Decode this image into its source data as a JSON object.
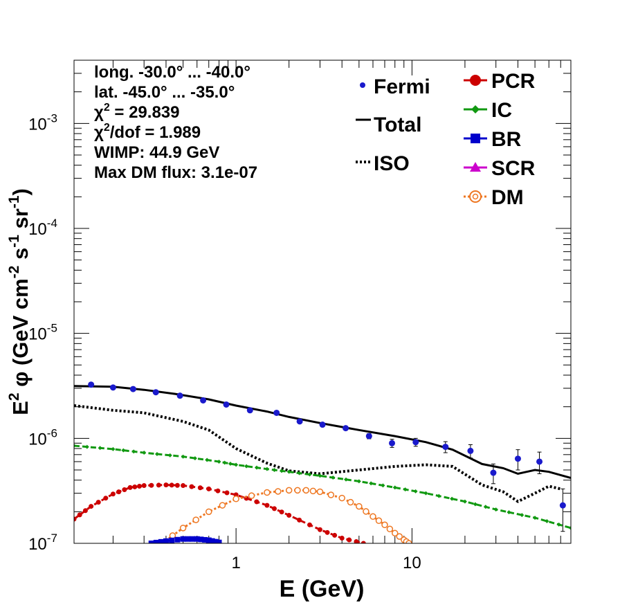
{
  "chart_data": {
    "type": "line",
    "xscale": "log",
    "yscale": "log",
    "xlim": [
      0.12,
      80
    ],
    "ylim": [
      1e-07,
      0.004
    ],
    "xlabel": "E (GeV)",
    "ylabel_parts": [
      "E",
      "2",
      "  φ (GeV cm",
      "-2",
      " s",
      "-1",
      " sr",
      "-1",
      ")"
    ],
    "x_tick_labels": [
      {
        "value": 1,
        "label": "1"
      },
      {
        "value": 10,
        "label": "10"
      }
    ],
    "y_tick_labels": [
      {
        "value": 1e-07,
        "base": "10",
        "exp": "-7"
      },
      {
        "value": 1e-06,
        "base": "10",
        "exp": "-6"
      },
      {
        "value": 1e-05,
        "base": "10",
        "exp": "-5"
      },
      {
        "value": 0.0001,
        "base": "10",
        "exp": "-4"
      },
      {
        "value": 0.001,
        "base": "10",
        "exp": "-3"
      }
    ],
    "info_lines": [
      {
        "parts": [
          {
            "t": "long. -30.0° ... -40.0°"
          }
        ]
      },
      {
        "parts": [
          {
            "t": "lat. -45.0° ... -35.0°"
          }
        ]
      },
      {
        "parts": [
          {
            "t": "χ"
          },
          {
            "t": "2",
            "sup": true
          },
          {
            "t": " = 29.839"
          }
        ]
      },
      {
        "parts": [
          {
            "t": "χ"
          },
          {
            "t": "2",
            "sup": true
          },
          {
            "t": "/dof = 1.989"
          }
        ]
      },
      {
        "parts": [
          {
            "t": "WIMP: 44.9 GeV"
          }
        ]
      },
      {
        "parts": [
          {
            "t": "Max DM flux: 3.1e-07"
          }
        ]
      }
    ],
    "legend_left": [
      {
        "label": "Fermi",
        "style": "points",
        "color": "#1a1acc"
      },
      {
        "label": "Total",
        "style": "solid",
        "color": "#000000"
      },
      {
        "label": "ISO",
        "style": "dotted",
        "color": "#000000"
      }
    ],
    "legend_right": [
      {
        "label": "PCR",
        "style": "circle",
        "color": "#cc0000"
      },
      {
        "label": "IC",
        "style": "diamond",
        "color": "#119911"
      },
      {
        "label": "BR",
        "style": "square",
        "color": "#0000cc"
      },
      {
        "label": "SCR",
        "style": "triangle",
        "color": "#cc00cc"
      },
      {
        "label": "DM",
        "style": "open-circle",
        "color": "#ee7722"
      }
    ],
    "fermi": {
      "name": "Fermi",
      "color": "#1a1acc",
      "x": [
        0.15,
        0.2,
        0.26,
        0.35,
        0.48,
        0.65,
        0.88,
        1.2,
        1.7,
        2.3,
        3.1,
        4.2,
        5.7,
        7.7,
        10.5,
        15.5,
        21.5,
        29.0,
        40.0,
        53.0,
        72.0
      ],
      "y": [
        3.25e-06,
        3.05e-06,
        2.95e-06,
        2.75e-06,
        2.55e-06,
        2.3e-06,
        2.1e-06,
        1.85e-06,
        1.75e-06,
        1.45e-06,
        1.35e-06,
        1.25e-06,
        1.05e-06,
        9e-07,
        9.2e-07,
        8.3e-07,
        7.6e-07,
        4.7e-07,
        6.4e-07,
        6e-07,
        2.3e-07
      ],
      "err": [
        5e-08,
        5e-08,
        5e-08,
        5e-08,
        5e-08,
        5e-08,
        5e-08,
        5e-08,
        5e-08,
        5e-08,
        5e-08,
        5e-08,
        6e-08,
        8e-08,
        8e-08,
        1e-07,
        1.1e-07,
        1e-07,
        1.4e-07,
        1.4e-07,
        1e-07
      ]
    },
    "series": [
      {
        "name": "Total",
        "color": "#000000",
        "style": "solid",
        "x": [
          0.12,
          0.2,
          0.3,
          0.45,
          0.7,
          1.0,
          1.5,
          2.0,
          3.0,
          5.0,
          8.0,
          12.0,
          17.0,
          25.0,
          33.0,
          40.0,
          50.0,
          60.0,
          80.0
        ],
        "y": [
          3.15e-06,
          3.1e-06,
          2.9e-06,
          2.65e-06,
          2.35e-06,
          2.05e-06,
          1.8e-06,
          1.6e-06,
          1.4e-06,
          1.2e-06,
          1.05e-06,
          9.2e-07,
          7.8e-07,
          5.7e-07,
          5.2e-07,
          4.6e-07,
          5e-07,
          4.8e-07,
          4.2e-07
        ]
      },
      {
        "name": "ISO",
        "color": "#000000",
        "style": "dotted",
        "x": [
          0.12,
          0.2,
          0.3,
          0.5,
          0.7,
          1.0,
          1.5,
          2.0,
          3.0,
          5.0,
          8.0,
          12.0,
          17.0,
          25.0,
          33.0,
          40.0,
          50.0,
          60.0,
          70.0
        ],
        "y": [
          2.05e-06,
          1.85e-06,
          1.75e-06,
          1.45e-06,
          1.2e-06,
          8e-07,
          5.8e-07,
          4.9e-07,
          4.6e-07,
          5e-07,
          5.4e-07,
          5.6e-07,
          5.4e-07,
          3.6e-07,
          3.1e-07,
          2.5e-07,
          3e-07,
          3.5e-07,
          3.3e-07
        ]
      },
      {
        "name": "IC",
        "color": "#119911",
        "style": "dashed-markers",
        "x": [
          0.12,
          0.2,
          0.3,
          0.5,
          0.8,
          1.0,
          1.5,
          2.0,
          3.0,
          5.0,
          8.0,
          12.0,
          20.0,
          30.0,
          50.0,
          80.0
        ],
        "y": [
          8.5e-07,
          7.9e-07,
          7.3e-07,
          6.7e-07,
          6e-07,
          5.6e-07,
          5.1e-07,
          4.8e-07,
          4.4e-07,
          3.9e-07,
          3.4e-07,
          3e-07,
          2.5e-07,
          2.1e-07,
          1.75e-07,
          1.4e-07
        ]
      },
      {
        "name": "PCR",
        "color": "#cc0000",
        "style": "dashed-markers",
        "x": [
          0.12,
          0.15,
          0.2,
          0.25,
          0.3,
          0.4,
          0.5,
          0.7,
          1.0,
          1.5,
          2.0,
          3.0,
          4.0,
          5.3
        ],
        "y": [
          1.7e-07,
          2.25e-07,
          2.95e-07,
          3.4e-07,
          3.55e-07,
          3.6e-07,
          3.55e-07,
          3.3e-07,
          2.9e-07,
          2.3e-07,
          1.85e-07,
          1.35e-07,
          1.12e-07,
          1e-07
        ]
      },
      {
        "name": "DM",
        "color": "#ee7722",
        "style": "dotted-open",
        "x": [
          0.38,
          0.5,
          0.7,
          1.0,
          1.5,
          2.0,
          2.5,
          3.0,
          4.0,
          5.0,
          6.0,
          7.0,
          8.0,
          9.0,
          9.6
        ],
        "y": [
          1e-07,
          1.4e-07,
          2e-07,
          2.65e-07,
          3.05e-07,
          3.2e-07,
          3.2e-07,
          3.1e-07,
          2.7e-07,
          2.25e-07,
          1.8e-07,
          1.5e-07,
          1.25e-07,
          1.08e-07,
          1e-07
        ]
      },
      {
        "name": "BR",
        "color": "#0000cc",
        "style": "dashed-markers",
        "x": [
          0.33,
          0.4,
          0.5,
          0.6,
          0.7,
          0.8
        ],
        "y": [
          1e-07,
          1.05e-07,
          1.1e-07,
          1.1e-07,
          1.07e-07,
          1.02e-07
        ]
      }
    ]
  }
}
